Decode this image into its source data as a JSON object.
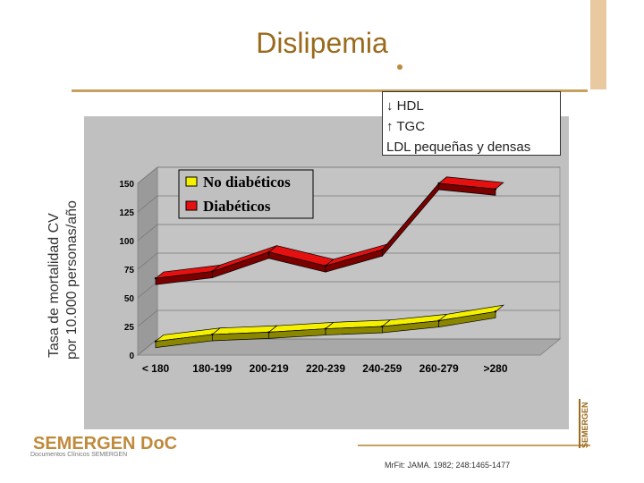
{
  "title": "Dislipemia",
  "y_axis_title": [
    "Tasa de mortalidad CV",
    "por 10.000 personas/año"
  ],
  "note_lines": [
    "↓ HDL",
    "↑ TGC",
    "LDL pequeñas y densas"
  ],
  "footer": {
    "brand": "SEMERGEN DoC",
    "brand_sub": "Documentos Clínicos SEMERGEN",
    "citation": "MrFit: JAMA. 1982; 248:1465-1477",
    "logo_text": "SEMERGEN"
  },
  "colors": {
    "accent": "#c08a3c",
    "chart_bg": "#c0c0c0",
    "series_red": "#e51010",
    "series_yellow": "#f5f000"
  },
  "chart_data": {
    "type": "line",
    "categories": [
      "< 180",
      "180-199",
      "200-219",
      "220-239",
      "240-259",
      "260-279",
      ">280"
    ],
    "yticks": [
      "0",
      "25",
      "50",
      "75",
      "100",
      "125",
      "150"
    ],
    "ylim": [
      0,
      150
    ],
    "series": [
      {
        "name": "No diabéticos",
        "values": [
          12,
          18,
          20,
          23,
          25,
          30,
          38
        ]
      },
      {
        "name": "Diabéticos",
        "values": [
          67,
          73,
          90,
          78,
          92,
          150,
          145
        ]
      }
    ],
    "legend_position": "top-left"
  }
}
